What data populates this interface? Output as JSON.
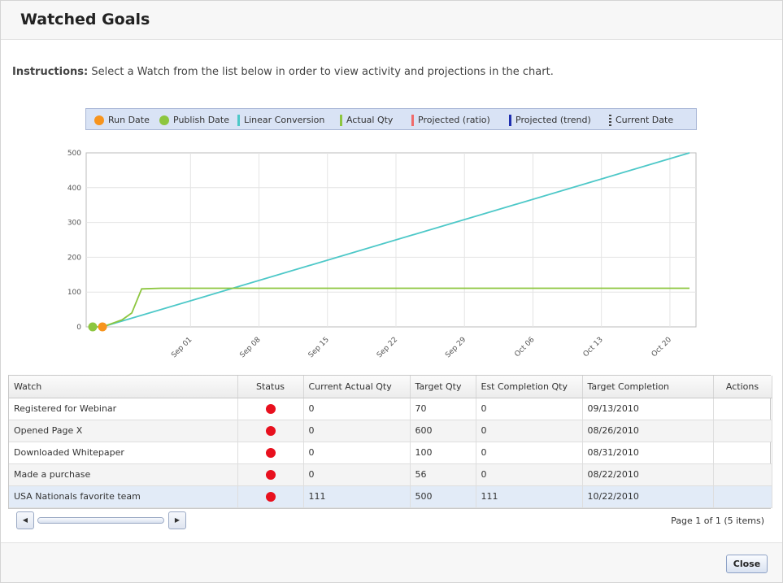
{
  "dialog": {
    "title": "Watched Goals",
    "instructions_label": "Instructions:",
    "instructions_text": " Select a Watch from the list below in order to view activity and projections in the chart.",
    "close_label": "Close"
  },
  "legend": [
    {
      "label": "Run Date",
      "color": "#f7941d",
      "kind": "dot"
    },
    {
      "label": "Publish Date",
      "color": "#8dc63f",
      "kind": "dot"
    },
    {
      "label": "Linear Conversion",
      "color": "#4dc8c8",
      "kind": "bar"
    },
    {
      "label": "Actual Qty",
      "color": "#8dc63f",
      "kind": "bar"
    },
    {
      "label": "Projected (ratio)",
      "color": "#f06a6a",
      "kind": "bar"
    },
    {
      "label": "Projected (trend)",
      "color": "#1f2fb0",
      "kind": "bar"
    },
    {
      "label": "Current Date",
      "color": "#444444",
      "kind": "dashes"
    }
  ],
  "chart_data": {
    "type": "line",
    "ylim": [
      0,
      500
    ],
    "yticks": [
      "0",
      "100",
      "200",
      "300",
      "400",
      "500"
    ],
    "xlim": [
      "2010-08-22",
      "2010-10-22"
    ],
    "xticks": [
      {
        "label": "Sep 01",
        "date": "2010-09-01"
      },
      {
        "label": "Sep 08",
        "date": "2010-09-08"
      },
      {
        "label": "Sep 15",
        "date": "2010-09-15"
      },
      {
        "label": "Sep 22",
        "date": "2010-09-22"
      },
      {
        "label": "Sep 29",
        "date": "2010-09-29"
      },
      {
        "label": "Oct 06",
        "date": "2010-10-06"
      },
      {
        "label": "Oct 13",
        "date": "2010-10-13"
      },
      {
        "label": "Oct 20",
        "date": "2010-10-20"
      }
    ],
    "grid": true,
    "series": [
      {
        "name": "Linear Conversion",
        "color": "#4dc8c8",
        "points": [
          [
            "2010-08-23",
            0
          ],
          [
            "2010-10-22",
            500
          ]
        ]
      },
      {
        "name": "Actual Qty",
        "color": "#8dc63f",
        "points": [
          [
            "2010-08-22",
            0
          ],
          [
            "2010-08-23",
            0
          ],
          [
            "2010-08-25",
            20
          ],
          [
            "2010-08-26",
            40
          ],
          [
            "2010-08-27",
            109
          ],
          [
            "2010-08-29",
            111
          ],
          [
            "2010-10-22",
            111
          ]
        ]
      }
    ],
    "markers": [
      {
        "name": "Publish Date",
        "color": "#8dc63f",
        "date": "2010-08-22",
        "value": 0
      },
      {
        "name": "Run Date",
        "color": "#f7941d",
        "date": "2010-08-23",
        "value": 0
      }
    ]
  },
  "table": {
    "headers": [
      "Watch",
      "Status",
      "Current Actual Qty",
      "Target Qty",
      "Est Completion Qty",
      "Target Completion",
      "Actions"
    ],
    "status_color": "#e8101e",
    "rows": [
      {
        "watch": "Registered for Webinar",
        "actual": "0",
        "target": "70",
        "est": "0",
        "completion": "09/13/2010",
        "actions": ""
      },
      {
        "watch": "Opened Page X",
        "actual": "0",
        "target": "600",
        "est": "0",
        "completion": "08/26/2010",
        "actions": ""
      },
      {
        "watch": "Downloaded Whitepaper",
        "actual": "0",
        "target": "100",
        "est": "0",
        "completion": "08/31/2010",
        "actions": ""
      },
      {
        "watch": "Made a purchase",
        "actual": "0",
        "target": "56",
        "est": "0",
        "completion": "08/22/2010",
        "actions": ""
      },
      {
        "watch": "USA Nationals favorite team",
        "actual": "111",
        "target": "500",
        "est": "111",
        "completion": "10/22/2010",
        "actions": ""
      }
    ]
  },
  "pager": {
    "scroll_left": "◀",
    "scroll_right": "▶",
    "info": "Page 1 of 1 (5 items)"
  }
}
